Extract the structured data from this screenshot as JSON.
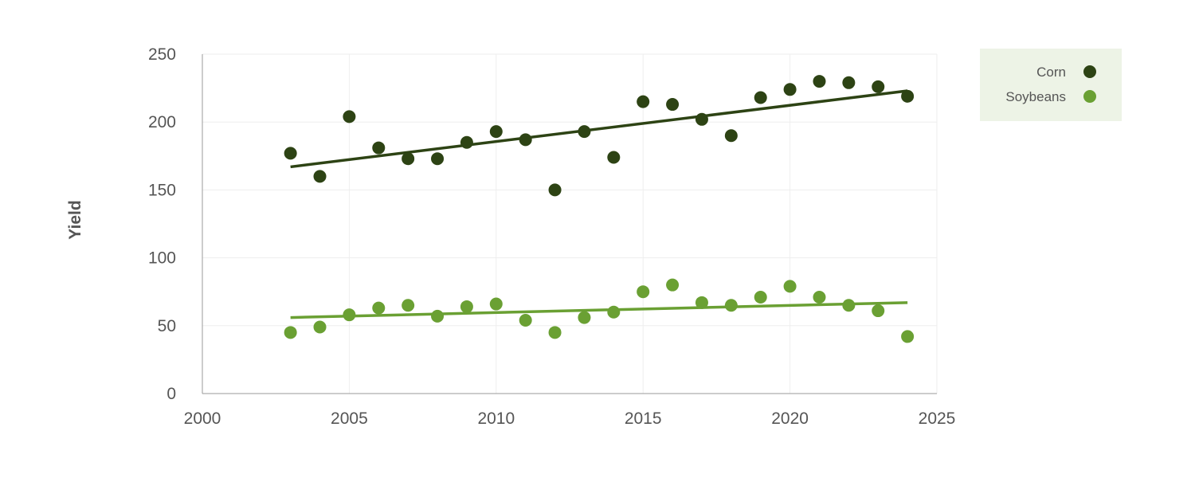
{
  "chart_data": {
    "type": "scatter",
    "title": "",
    "xlabel": "",
    "ylabel": "Yield",
    "xlim": [
      2000,
      2025
    ],
    "ylim": [
      0,
      250
    ],
    "x_ticks": [
      2000,
      2005,
      2010,
      2015,
      2020,
      2025
    ],
    "y_ticks": [
      0,
      50,
      100,
      150,
      200,
      250
    ],
    "grid": true,
    "legend_position": "top-right",
    "series": [
      {
        "name": "Corn",
        "color": "#2d4314",
        "x": [
          2003,
          2004,
          2005,
          2006,
          2007,
          2008,
          2009,
          2010,
          2011,
          2012,
          2013,
          2014,
          2015,
          2016,
          2017,
          2018,
          2019,
          2020,
          2021,
          2022,
          2023,
          2024
        ],
        "y": [
          177,
          160,
          204,
          181,
          173,
          173,
          185,
          193,
          187,
          150,
          193,
          174,
          215,
          213,
          202,
          190,
          218,
          224,
          230,
          229,
          226,
          219
        ],
        "trend": {
          "x": [
            2003,
            2024
          ],
          "y": [
            167,
            223
          ]
        }
      },
      {
        "name": "Soybeans",
        "color": "#6aa033",
        "x": [
          2003,
          2004,
          2005,
          2006,
          2007,
          2008,
          2009,
          2010,
          2011,
          2012,
          2013,
          2014,
          2015,
          2016,
          2017,
          2018,
          2019,
          2020,
          2021,
          2022,
          2023,
          2024
        ],
        "y": [
          45,
          49,
          58,
          63,
          65,
          57,
          64,
          66,
          54,
          45,
          56,
          60,
          75,
          80,
          67,
          65,
          71,
          79,
          71,
          65,
          61,
          42
        ],
        "trend": {
          "x": [
            2003,
            2024
          ],
          "y": [
            56,
            67
          ]
        }
      }
    ]
  },
  "legend": {
    "background": "#edf3e6"
  }
}
